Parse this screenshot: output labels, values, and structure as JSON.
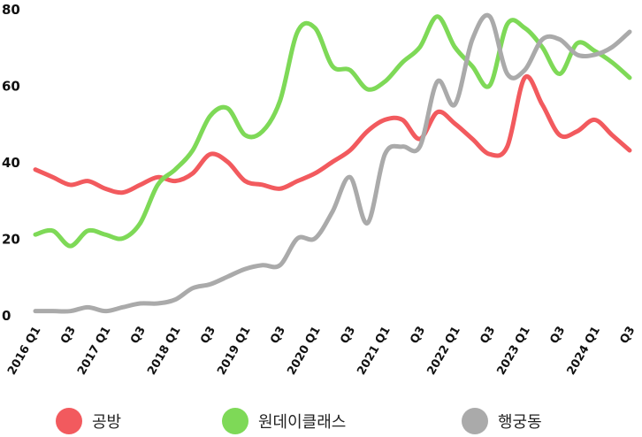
{
  "chart_data": {
    "type": "line",
    "title": "",
    "xlabel": "",
    "ylabel": "",
    "ylim": [
      0,
      80
    ],
    "yticks": [
      0,
      20,
      40,
      60,
      80
    ],
    "grid": false,
    "legend_position": "bottom",
    "x": [
      "2016 Q1",
      "Q2",
      "Q3",
      "Q4",
      "2017 Q1",
      "Q2",
      "Q3",
      "Q4",
      "2018 Q1",
      "Q2",
      "Q3",
      "Q4",
      "2019 Q1",
      "Q2",
      "Q3",
      "Q4",
      "2020 Q1",
      "Q2",
      "Q3",
      "Q4",
      "2021 Q1",
      "Q2",
      "Q3",
      "Q4",
      "2022 Q1",
      "Q2",
      "Q3",
      "Q4",
      "2023 Q1",
      "Q2",
      "Q3",
      "Q4",
      "2024 Q1",
      "Q2",
      "Q3"
    ],
    "tick_labels": [
      {
        "index": 0,
        "label": "2016 Q1"
      },
      {
        "index": 2,
        "label": "Q3"
      },
      {
        "index": 4,
        "label": "2017 Q1"
      },
      {
        "index": 6,
        "label": "Q3"
      },
      {
        "index": 8,
        "label": "2018 Q1"
      },
      {
        "index": 10,
        "label": "Q3"
      },
      {
        "index": 12,
        "label": "2019 Q1"
      },
      {
        "index": 14,
        "label": "Q3"
      },
      {
        "index": 16,
        "label": "2020 Q1"
      },
      {
        "index": 18,
        "label": "Q3"
      },
      {
        "index": 20,
        "label": "2021 Q1"
      },
      {
        "index": 22,
        "label": "Q3"
      },
      {
        "index": 24,
        "label": "2022 Q1"
      },
      {
        "index": 26,
        "label": "Q3"
      },
      {
        "index": 28,
        "label": "2023 Q1"
      },
      {
        "index": 30,
        "label": "Q3"
      },
      {
        "index": 32,
        "label": "2024 Q1"
      },
      {
        "index": 34,
        "label": "Q3"
      }
    ],
    "series": [
      {
        "name": "공방",
        "color": "#f25a5e",
        "values": [
          38,
          36,
          34,
          35,
          33,
          32,
          34,
          36,
          35,
          37,
          42,
          40,
          35,
          34,
          33,
          35,
          37,
          40,
          43,
          48,
          51,
          51,
          46,
          53,
          50,
          46,
          42,
          44,
          62,
          55,
          47,
          48,
          51,
          47,
          43
        ]
      },
      {
        "name": "원데이클래스",
        "color": "#7ed957",
        "values": [
          21,
          22,
          18,
          22,
          21,
          20,
          24,
          34,
          38,
          43,
          52,
          54,
          47,
          48,
          56,
          74,
          75,
          65,
          64,
          59,
          61,
          66,
          70,
          78,
          70,
          65,
          60,
          76,
          75,
          70,
          63,
          71,
          69,
          66,
          62
        ]
      },
      {
        "name": "행궁동",
        "color": "#aaaaaa",
        "values": [
          1,
          1,
          1,
          2,
          1,
          2,
          3,
          3,
          4,
          7,
          8,
          10,
          12,
          13,
          13,
          20,
          20,
          27,
          36,
          24,
          42,
          44,
          44,
          61,
          55,
          72,
          78,
          63,
          64,
          72,
          72,
          68,
          68,
          70,
          74
        ]
      }
    ]
  }
}
